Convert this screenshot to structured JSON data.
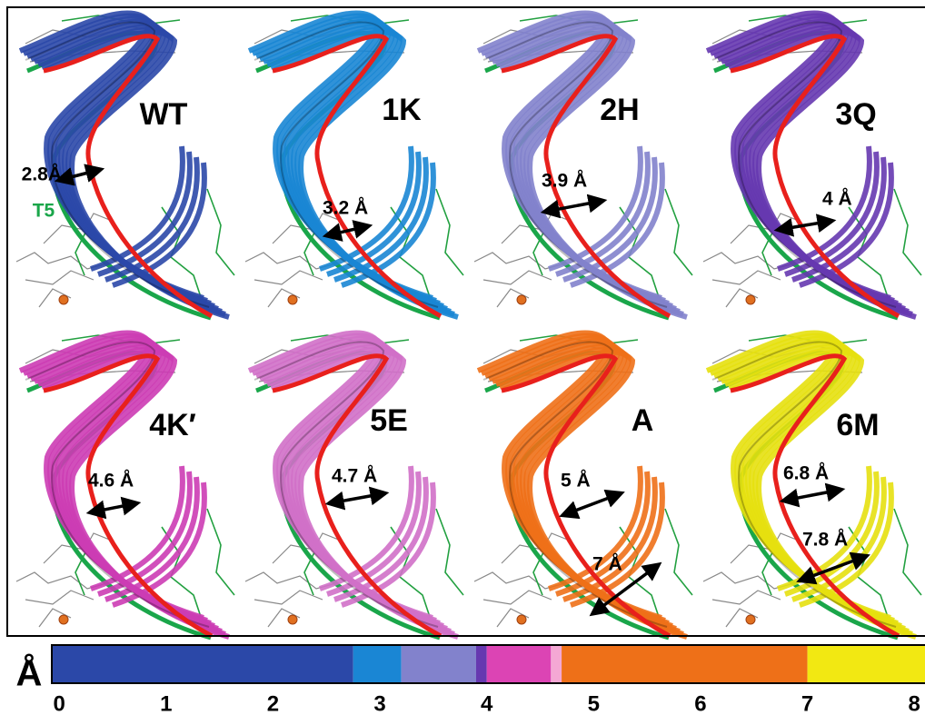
{
  "panels": [
    {
      "label": "WT",
      "color": "#2b48a8",
      "distances": [
        "2.8Å"
      ],
      "annotation": "T5"
    },
    {
      "label": "1K",
      "color": "#1a86d4",
      "distances": [
        "3.2 Å"
      ]
    },
    {
      "label": "2H",
      "color": "#8282cc",
      "distances": [
        "3.9 Å"
      ]
    },
    {
      "label": "3Q",
      "color": "#6638b0",
      "distances": [
        "4 Å"
      ]
    },
    {
      "label": "4K′",
      "color": "#cc3cb4",
      "distances": [
        "4.6 Å"
      ]
    },
    {
      "label": "5E",
      "color": "#d070c8",
      "distances": [
        "4.7 Å"
      ]
    },
    {
      "label": "A",
      "color": "#ee7018",
      "distances": [
        "5 Å",
        "7 Å"
      ]
    },
    {
      "label": "6M",
      "color": "#e6e010",
      "distances": [
        "6.8 Å",
        "7.8 Å"
      ]
    }
  ],
  "colorbar": {
    "unit": "Å",
    "xlim": [
      -0.07,
      8.1
    ],
    "ticks": [
      0,
      1,
      2,
      3,
      4,
      5,
      6,
      7,
      8
    ],
    "segments": [
      {
        "from": -0.07,
        "to": 2.75,
        "color": "#2b48a8"
      },
      {
        "from": 2.75,
        "to": 3.2,
        "color": "#1a86d4"
      },
      {
        "from": 3.2,
        "to": 3.9,
        "color": "#8282cc"
      },
      {
        "from": 3.9,
        "to": 4.0,
        "color": "#6638b0"
      },
      {
        "from": 4.0,
        "to": 4.6,
        "color": "#dc44b4"
      },
      {
        "from": 4.6,
        "to": 4.7,
        "color": "#f4a8d4"
      },
      {
        "from": 4.7,
        "to": 7.0,
        "color": "#ee7018"
      },
      {
        "from": 7.0,
        "to": 8.1,
        "color": "#f2e812"
      }
    ]
  }
}
